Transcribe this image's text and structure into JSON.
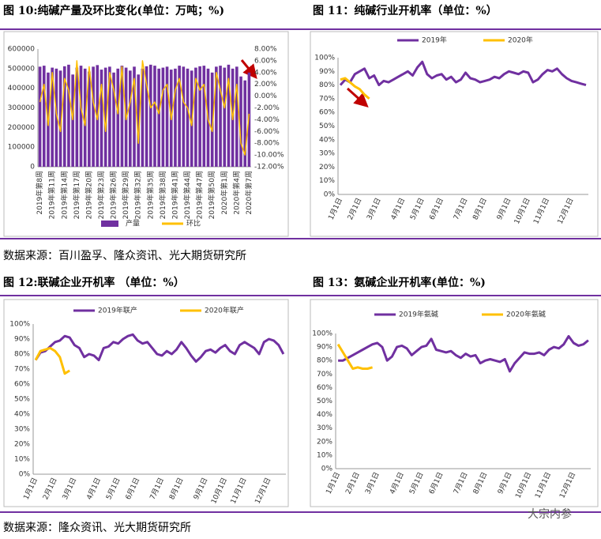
{
  "chart_data": [
    {
      "type": "combo",
      "title": "图 10:纯碱产量及环比变化(单位：万吨；%)",
      "categories": [
        "2019年第8周",
        null,
        null,
        "2019年第11周",
        null,
        null,
        "2019年第14周",
        null,
        null,
        "2019年第17周",
        null,
        null,
        "2019年第20周",
        null,
        null,
        "2019年第23周",
        null,
        null,
        "2019年第26周",
        null,
        null,
        "2019年第29周",
        null,
        null,
        "2019年第32周",
        null,
        null,
        "2019年第35周",
        null,
        null,
        "2019年第38周",
        null,
        null,
        "2019年第41周",
        null,
        null,
        "2019年第44周",
        null,
        null,
        "2019年第47周",
        null,
        null,
        "2019年第50周",
        null,
        null,
        "2020年第1周",
        null,
        null,
        "2020年第4周",
        null,
        null,
        "2020年第7周"
      ],
      "series": [
        {
          "name": "产量",
          "type": "bar",
          "color": "#7030a0",
          "values": [
            510000,
            515000,
            480000,
            505000,
            500000,
            490000,
            512000,
            520000,
            470000,
            505000,
            515000,
            500000,
            485000,
            510000,
            518000,
            495000,
            505000,
            510000,
            480000,
            500000,
            515000,
            505000,
            490000,
            510000,
            470000,
            500000,
            512000,
            520000,
            515000,
            500000,
            505000,
            510000,
            495000,
            500000,
            515000,
            510000,
            500000,
            490000,
            505000,
            512000,
            515000,
            500000,
            480000,
            510000,
            515000,
            505000,
            520000,
            500000,
            510000,
            460000,
            440000,
            480000
          ]
        },
        {
          "name": "环比",
          "type": "line",
          "axis": "y2",
          "color": "#ffc000",
          "values": [
            -1,
            2,
            -5,
            4,
            -3,
            -6,
            3,
            1,
            -4,
            6,
            -2,
            -5,
            5,
            -1,
            -4,
            2,
            -6,
            4,
            1,
            -3,
            5,
            -4,
            -1,
            3,
            -8,
            6,
            2,
            -2,
            -1,
            -3,
            1,
            2,
            -4,
            1,
            3,
            -1,
            -2,
            -5,
            3,
            1,
            2,
            -4,
            -6,
            4,
            1,
            -2,
            3,
            -4,
            2,
            -8,
            -10,
            -3
          ]
        }
      ],
      "ylim": [
        0,
        600000
      ],
      "yticks": [
        0,
        100000,
        200000,
        300000,
        400000,
        500000,
        600000
      ],
      "y2lim": [
        -12,
        8
      ],
      "y2ticks": [
        {
          "value": -12,
          "label": "-12.00%"
        },
        {
          "value": -10,
          "label": "-10.00%"
        },
        {
          "value": -8,
          "label": "-8.00%"
        },
        {
          "value": -6,
          "label": "-6.00%"
        },
        {
          "value": -4,
          "label": "-4.00%"
        },
        {
          "value": -2,
          "label": "-2.00%"
        },
        {
          "value": 0,
          "label": "0.00%"
        },
        {
          "value": 2,
          "label": "2.00%"
        },
        {
          "value": 4,
          "label": "4.00%"
        },
        {
          "value": 6,
          "label": "6.00%"
        },
        {
          "value": 8,
          "label": "8.00%"
        }
      ],
      "grid": false,
      "legend": "bottom"
    },
    {
      "type": "line",
      "title": "图 11：纯碱行业开机率（单位：%）",
      "categories": [
        "1月1日",
        null,
        null,
        null,
        "2月1日",
        null,
        null,
        null,
        "3月1日",
        null,
        null,
        null,
        null,
        "4月1日",
        null,
        null,
        null,
        "5月1日",
        null,
        null,
        null,
        "6月1日",
        null,
        null,
        null,
        null,
        "7月1日",
        null,
        null,
        null,
        "8月1日",
        null,
        null,
        null,
        null,
        "9月1日",
        null,
        null,
        null,
        "10月1日",
        null,
        null,
        null,
        "11月1日",
        null,
        null,
        null,
        null,
        "12月1日",
        null,
        null,
        null
      ],
      "series": [
        {
          "name": "2019年",
          "color": "#7030a0",
          "values": [
            80,
            84,
            82,
            88,
            90,
            92,
            85,
            87,
            80,
            83,
            82,
            84,
            86,
            88,
            90,
            87,
            93,
            97,
            88,
            85,
            87,
            88,
            84,
            86,
            82,
            84,
            89,
            85,
            84,
            82,
            83,
            84,
            86,
            85,
            88,
            90,
            89,
            88,
            90,
            89,
            82,
            84,
            88,
            91,
            90,
            92,
            88,
            85,
            83,
            82,
            81,
            80
          ]
        },
        {
          "name": "2020年",
          "color": "#ffc000",
          "values": [
            84,
            85,
            82,
            79,
            77,
            73,
            70,
            null,
            null,
            null,
            null,
            null,
            null,
            null,
            null,
            null,
            null,
            null,
            null,
            null,
            null,
            null,
            null,
            null,
            null,
            null,
            null,
            null,
            null,
            null,
            null,
            null,
            null,
            null,
            null,
            null,
            null,
            null,
            null,
            null,
            null,
            null,
            null,
            null,
            null,
            null,
            null,
            null,
            null,
            null,
            null,
            null
          ]
        }
      ],
      "ylim": [
        0,
        100
      ],
      "yticks": [
        {
          "value": 0,
          "label": "0%"
        },
        {
          "value": 10,
          "label": "10%"
        },
        {
          "value": 20,
          "label": "20%"
        },
        {
          "value": 30,
          "label": "30%"
        },
        {
          "value": 40,
          "label": "40%"
        },
        {
          "value": 50,
          "label": "50%"
        },
        {
          "value": 60,
          "label": "60%"
        },
        {
          "value": 70,
          "label": "70%"
        },
        {
          "value": 80,
          "label": "80%"
        },
        {
          "value": 90,
          "label": "90%"
        },
        {
          "value": 100,
          "label": "100%"
        }
      ],
      "grid": false,
      "legend": "top"
    },
    {
      "type": "line",
      "title": "图 12:联碱企业开机率 （单位：%）",
      "categories": [
        "1月1日",
        null,
        null,
        null,
        "2月1日",
        null,
        null,
        null,
        "3月1日",
        null,
        null,
        null,
        null,
        "4月1日",
        null,
        null,
        null,
        "5月1日",
        null,
        null,
        null,
        "6月1日",
        null,
        null,
        null,
        null,
        "7月1日",
        null,
        null,
        null,
        "8月1日",
        null,
        null,
        null,
        null,
        "9月1日",
        null,
        null,
        null,
        "10月1日",
        null,
        null,
        null,
        "11月1日",
        null,
        null,
        null,
        null,
        "12月1日",
        null,
        null,
        null
      ],
      "series": [
        {
          "name": "2019年联产",
          "color": "#7030a0",
          "values": [
            76,
            81,
            82,
            85,
            88,
            89,
            92,
            91,
            86,
            84,
            78,
            80,
            79,
            76,
            84,
            85,
            88,
            87,
            90,
            92,
            93,
            89,
            87,
            88,
            84,
            80,
            79,
            82,
            80,
            83,
            88,
            84,
            79,
            75,
            78,
            82,
            83,
            81,
            84,
            86,
            82,
            80,
            86,
            88,
            86,
            84,
            80,
            88,
            90,
            89,
            86,
            80
          ]
        },
        {
          "name": "2020年联产",
          "color": "#ffc000",
          "values": [
            76,
            82,
            83,
            84,
            82,
            78,
            67,
            69,
            null,
            null,
            null,
            null,
            null,
            null,
            null,
            null,
            null,
            null,
            null,
            null,
            null,
            null,
            null,
            null,
            null,
            null,
            null,
            null,
            null,
            null,
            null,
            null,
            null,
            null,
            null,
            null,
            null,
            null,
            null,
            null,
            null,
            null,
            null,
            null,
            null,
            null,
            null,
            null,
            null,
            null,
            null,
            null
          ]
        }
      ],
      "ylim": [
        0,
        100
      ],
      "yticks": [
        {
          "value": 0,
          "label": "0%"
        },
        {
          "value": 10,
          "label": "10%"
        },
        {
          "value": 20,
          "label": "20%"
        },
        {
          "value": 30,
          "label": "30%"
        },
        {
          "value": 40,
          "label": "40%"
        },
        {
          "value": 50,
          "label": "50%"
        },
        {
          "value": 60,
          "label": "60%"
        },
        {
          "value": 70,
          "label": "70%"
        },
        {
          "value": 80,
          "label": "80%"
        },
        {
          "value": 90,
          "label": "90%"
        },
        {
          "value": 100,
          "label": "100%"
        }
      ],
      "grid": false,
      "legend": "top"
    },
    {
      "type": "line",
      "title": "图 13：氨碱企业开机率(单位：%)",
      "categories": [
        "1月1日",
        null,
        null,
        null,
        "2月1日",
        null,
        null,
        null,
        "3月1日",
        null,
        null,
        null,
        null,
        "4月1日",
        null,
        null,
        null,
        "5月1日",
        null,
        null,
        null,
        "6月1日",
        null,
        null,
        null,
        null,
        "7月1日",
        null,
        null,
        null,
        "8月1日",
        null,
        null,
        null,
        null,
        "9月1日",
        null,
        null,
        null,
        "10月1日",
        null,
        null,
        null,
        "11月1日",
        null,
        null,
        null,
        null,
        "12月1日",
        null,
        null,
        null
      ],
      "series": [
        {
          "name": "2019年氨碱",
          "color": "#7030a0",
          "values": [
            80,
            80,
            82,
            84,
            86,
            88,
            90,
            92,
            93,
            90,
            80,
            83,
            90,
            91,
            89,
            84,
            87,
            90,
            91,
            96,
            88,
            87,
            86,
            87,
            84,
            82,
            85,
            83,
            84,
            78,
            80,
            81,
            80,
            79,
            81,
            72,
            78,
            82,
            86,
            85,
            85,
            86,
            84,
            88,
            90,
            89,
            92,
            98,
            93,
            91,
            92,
            95
          ]
        },
        {
          "name": "2020年氨碱",
          "color": "#ffc000",
          "values": [
            92,
            86,
            80,
            74,
            75,
            74,
            74,
            75,
            null,
            null,
            null,
            null,
            null,
            null,
            null,
            null,
            null,
            null,
            null,
            null,
            null,
            null,
            null,
            null,
            null,
            null,
            null,
            null,
            null,
            null,
            null,
            null,
            null,
            null,
            null,
            null,
            null,
            null,
            null,
            null,
            null,
            null,
            null,
            null,
            null,
            null,
            null,
            null,
            null,
            null,
            null,
            null
          ]
        }
      ],
      "ylim": [
        0,
        100
      ],
      "yticks": [
        {
          "value": 0,
          "label": "0%"
        },
        {
          "value": 10,
          "label": "10%"
        },
        {
          "value": 20,
          "label": "20%"
        },
        {
          "value": 30,
          "label": "30%"
        },
        {
          "value": 40,
          "label": "40%"
        },
        {
          "value": 50,
          "label": "50%"
        },
        {
          "value": 60,
          "label": "60%"
        },
        {
          "value": 70,
          "label": "70%"
        },
        {
          "value": 80,
          "label": "80%"
        },
        {
          "value": 90,
          "label": "90%"
        },
        {
          "value": 100,
          "label": "100%"
        }
      ],
      "grid": false,
      "legend": "top"
    }
  ],
  "sources": [
    "数据来源：百川盈孚、隆众资讯、光大期货研究所",
    "数据来源：隆众资讯、光大期货研究所"
  ],
  "watermark": "大宗内参"
}
